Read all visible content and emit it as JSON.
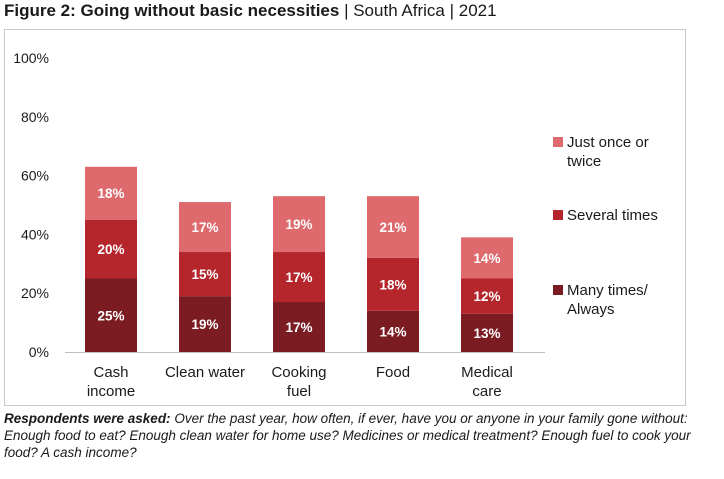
{
  "title": {
    "bold": "Figure 2: Going without basic necessities",
    "sep1": " | ",
    "country": "South Africa",
    "sep2": " | ",
    "year": "2021"
  },
  "footnote": {
    "lead": "Respondents were asked:",
    "text": " Over the past year, how often, if ever, have you or anyone in your family gone without: Enough food to eat? Enough clean water for home use? Medicines or medical treatment? Enough fuel to cook your food? A cash income?"
  },
  "chart_data": {
    "type": "bar",
    "stacked": true,
    "categories": [
      [
        "Cash",
        "income"
      ],
      [
        "Clean water"
      ],
      [
        "Cooking",
        "fuel"
      ],
      [
        "Food"
      ],
      [
        "Medical",
        "care"
      ]
    ],
    "series": [
      {
        "name": "Many times/ Always",
        "legend_lines": [
          "Many times/",
          "Always"
        ],
        "color": "#7b1c22",
        "values": [
          25,
          19,
          17,
          14,
          13
        ]
      },
      {
        "name": "Several times",
        "legend_lines": [
          "Several times"
        ],
        "color": "#b5252c",
        "values": [
          20,
          15,
          17,
          18,
          12
        ]
      },
      {
        "name": "Just once or twice",
        "legend_lines": [
          "Just once or",
          "twice"
        ],
        "color": "#de6a6d",
        "values": [
          18,
          17,
          19,
          21,
          14
        ]
      }
    ],
    "ylim": [
      0,
      100
    ],
    "yticks": [
      "0%",
      "20%",
      "40%",
      "60%",
      "80%",
      "100%"
    ],
    "label_suffix": "%",
    "grid": false,
    "legend_position": "right"
  }
}
